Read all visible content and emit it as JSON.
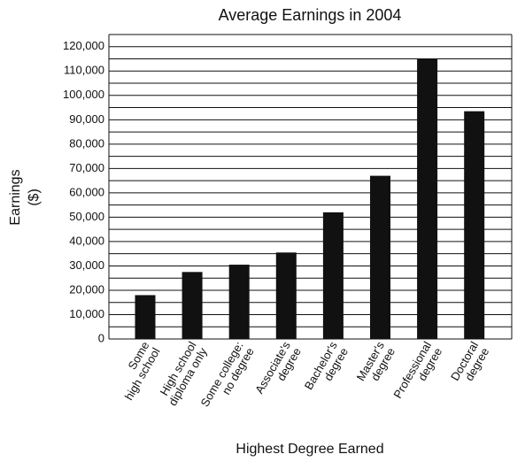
{
  "chart_data": {
    "type": "bar",
    "title": "Average Earnings in 2004",
    "y_label": [
      "Earnings",
      "($)"
    ],
    "x_label": "Highest Degree Earned",
    "categories": [
      [
        "Some",
        "high school"
      ],
      [
        "High school",
        "diploma only"
      ],
      [
        "Some college:",
        "no degree"
      ],
      [
        "Associate's",
        "degree"
      ],
      [
        "Bachelor's",
        "degree"
      ],
      [
        "Master's",
        "degree"
      ],
      [
        "Professional",
        "degree"
      ],
      [
        "Doctoral",
        "degree"
      ]
    ],
    "values": [
      18000,
      27500,
      30500,
      35500,
      52000,
      67000,
      115000,
      93500
    ],
    "color": "#111111",
    "ylim": [
      0,
      125000
    ],
    "yticks": [
      0,
      {
        "value": 10000,
        "label": "10,000"
      },
      {
        "value": 20000,
        "label": "20,000"
      },
      {
        "value": 30000,
        "label": "30,000"
      },
      {
        "value": 40000,
        "label": "40,000"
      },
      {
        "value": 50000,
        "label": "50,000"
      },
      {
        "value": 60000,
        "label": "60,000"
      },
      {
        "value": 70000,
        "label": "70,000"
      },
      {
        "value": 80000,
        "label": "80,000"
      },
      {
        "value": 90000,
        "label": "90,000"
      },
      {
        "value": 100000,
        "label": "100,000"
      },
      {
        "value": 110000,
        "label": "110,000"
      },
      {
        "value": 120000,
        "label": "120,000"
      }
    ],
    "minor_yticks": [
      5000,
      15000,
      25000,
      35000,
      45000,
      55000,
      65000,
      75000,
      85000,
      95000,
      105000,
      115000,
      125000
    ],
    "grid": true
  }
}
